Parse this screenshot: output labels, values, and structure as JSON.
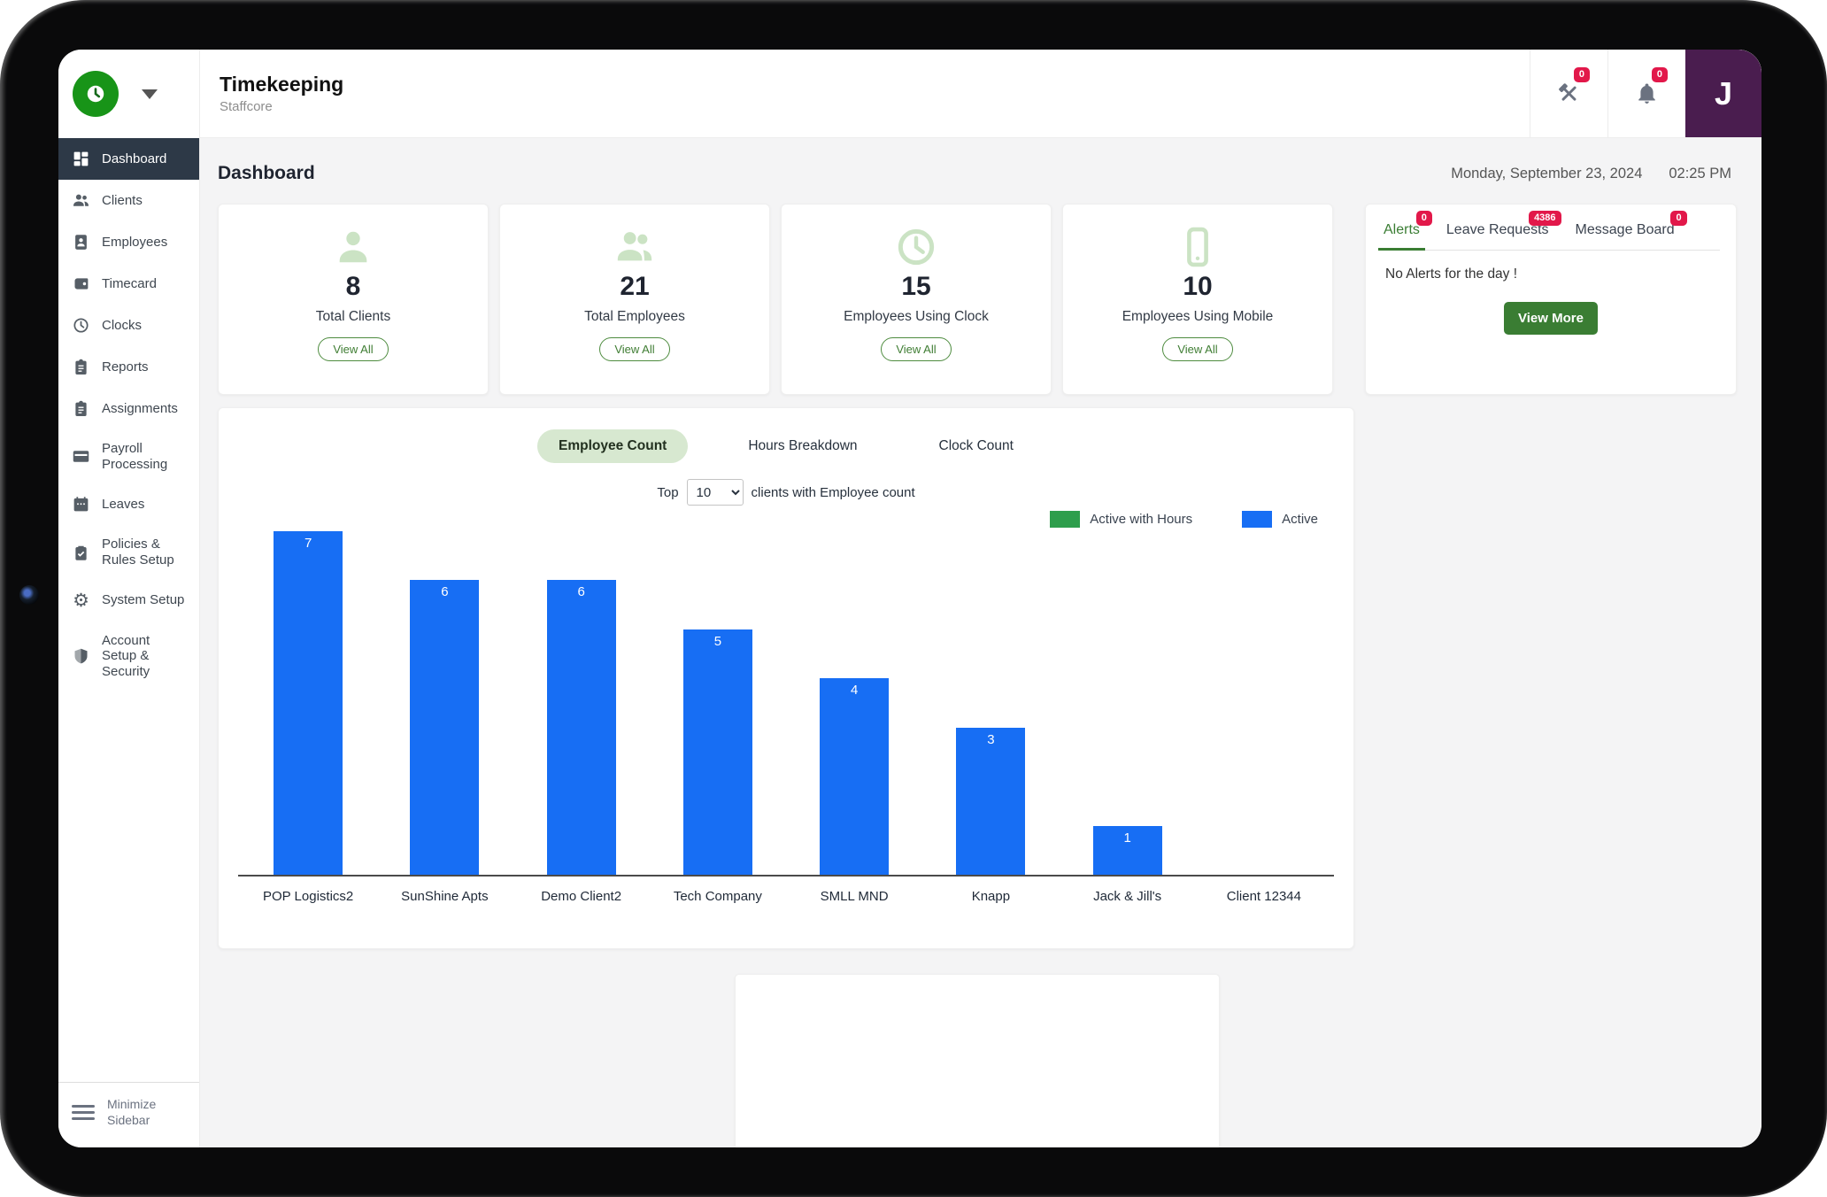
{
  "header": {
    "app_title": "Timekeeping",
    "app_subtitle": "Staffcore",
    "tools_badge": "0",
    "notifications_badge": "0",
    "avatar_initial": "J"
  },
  "sidebar": {
    "items": [
      {
        "label": "Dashboard",
        "icon": "dashboard-icon",
        "active": true
      },
      {
        "label": "Clients",
        "icon": "clients-icon",
        "active": false
      },
      {
        "label": "Employees",
        "icon": "employees-icon",
        "active": false
      },
      {
        "label": "Timecard",
        "icon": "timecard-icon",
        "active": false
      },
      {
        "label": "Clocks",
        "icon": "clock-icon",
        "active": false
      },
      {
        "label": "Reports",
        "icon": "reports-icon",
        "active": false
      },
      {
        "label": "Assignments",
        "icon": "assignments-icon",
        "active": false
      },
      {
        "label": "Payroll Processing",
        "icon": "payroll-icon",
        "active": false
      },
      {
        "label": "Leaves",
        "icon": "calendar-icon",
        "active": false
      },
      {
        "label": "Policies & Rules Setup",
        "icon": "policies-icon",
        "active": false
      },
      {
        "label": "System Setup",
        "icon": "gear-icon",
        "active": false
      },
      {
        "label": "Account Setup & Security",
        "icon": "shield-icon",
        "active": false
      }
    ],
    "minimize_label": "Minimize Sidebar"
  },
  "page": {
    "title": "Dashboard",
    "date": "Monday, September 23, 2024",
    "time": "02:25 PM"
  },
  "stat_cards": [
    {
      "icon": "person-icon",
      "value": "8",
      "label": "Total Clients",
      "button_label": "View All"
    },
    {
      "icon": "people-icon",
      "value": "21",
      "label": "Total Employees",
      "button_label": "View All"
    },
    {
      "icon": "clock-icon",
      "value": "15",
      "label": "Employees Using Clock",
      "button_label": "View All"
    },
    {
      "icon": "mobile-icon",
      "value": "10",
      "label": "Employees Using Mobile",
      "button_label": "View All"
    }
  ],
  "alerts_panel": {
    "tabs": [
      {
        "label": "Alerts",
        "badge": "0",
        "active": true
      },
      {
        "label": "Leave Requests",
        "badge": "4386",
        "active": false
      },
      {
        "label": "Message Board",
        "badge": "0",
        "active": false
      }
    ],
    "empty_message": "No Alerts for the day !",
    "view_more_label": "View More"
  },
  "chart_panel": {
    "tabs": [
      {
        "label": "Employee Count",
        "active": true
      },
      {
        "label": "Hours Breakdown",
        "active": false
      },
      {
        "label": "Clock Count",
        "active": false
      }
    ],
    "filter": {
      "prefix": "Top",
      "selected": "10",
      "suffix": "clients with Employee count"
    }
  },
  "chart_data": {
    "type": "bar",
    "title": "Top 10 clients with Employee count",
    "categories": [
      "POP Logistics2",
      "SunShine Apts",
      "Demo Client2",
      "Tech Company",
      "SMLL MND",
      "Knapp",
      "Jack & Jill's",
      "Client 12344"
    ],
    "series": [
      {
        "name": "Active with Hours",
        "color": "#2e9e4c",
        "values": [
          0,
          0,
          0,
          0,
          0,
          0,
          0,
          0
        ]
      },
      {
        "name": "Active",
        "color": "#176ef4",
        "values": [
          7,
          6,
          6,
          5,
          4,
          3,
          1,
          0
        ]
      }
    ],
    "ylim": [
      0,
      7
    ],
    "grid": false,
    "legend_position": "top-right",
    "value_labels": true
  },
  "colors": {
    "brand_green": "#189418",
    "button_green": "#3a7d33",
    "pill_green_bg": "#d7e8d0",
    "badge_red": "#e2184a",
    "bar_blue": "#176ef4",
    "legend_green": "#2e9e4c",
    "avatar_purple": "#4a1d4f",
    "sidebar_active_bg": "#2d3947"
  }
}
